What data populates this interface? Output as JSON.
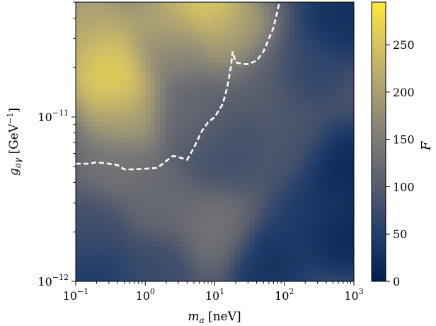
{
  "chart_data": {
    "type": "heatmap",
    "title": "",
    "x": {
      "label_base": "m",
      "label_sub": "a",
      "label_unit": " [neV]",
      "scale": "log",
      "range": [
        0.1,
        1000
      ],
      "ticks": [
        {
          "value": 0.1,
          "base": "10",
          "exp": "−1"
        },
        {
          "value": 1,
          "base": "10",
          "exp": "0"
        },
        {
          "value": 10,
          "base": "10",
          "exp": "1"
        },
        {
          "value": 100,
          "base": "10",
          "exp": "2"
        },
        {
          "value": 1000,
          "base": "10",
          "exp": "3"
        }
      ]
    },
    "y": {
      "label_base": "g",
      "label_sub": "aγ",
      "label_unit_pre": " [GeV",
      "label_unit_exp": "−1",
      "label_unit_post": "]",
      "scale": "log",
      "range": [
        1e-12,
        5e-11
      ],
      "ticks": [
        {
          "value": 1e-12,
          "base": "10",
          "exp": "−12"
        },
        {
          "value": 1e-11,
          "base": "10",
          "exp": "−11"
        }
      ]
    },
    "colorbar": {
      "label": "F",
      "range": [
        0,
        295
      ],
      "ticks": [
        {
          "value": 0,
          "label": "0"
        },
        {
          "value": 50,
          "label": "50"
        },
        {
          "value": 100,
          "label": "100"
        },
        {
          "value": 150,
          "label": "150"
        },
        {
          "value": 200,
          "label": "200"
        },
        {
          "value": 250,
          "label": "250"
        }
      ],
      "colormap": "cividis",
      "colormap_stops": [
        "#00204c",
        "#213d6b",
        "#555b6c",
        "#7b7a77",
        "#a59c74",
        "#d3c064",
        "#fee838"
      ]
    },
    "field_peaks": [
      {
        "name": "background",
        "value": 95
      },
      {
        "x": 0.35,
        "y": 1.7e-11,
        "value": 292
      },
      {
        "x": 0.25,
        "y": 2.5e-11,
        "value": 255
      },
      {
        "x": 7,
        "y": 4.8e-11,
        "value": 280
      },
      {
        "x": 2,
        "y": 3.5e-11,
        "value": 230
      },
      {
        "x": 20,
        "y": 3e-11,
        "value": 215
      },
      {
        "x": 0.15,
        "y": 4e-11,
        "value": 215
      },
      {
        "x": 2.5,
        "y": 2.5e-11,
        "value": 150
      },
      {
        "x": 50,
        "y": 1.8e-11,
        "value": 105
      },
      {
        "x": 12,
        "y": 6.5e-12,
        "value": 80
      },
      {
        "x": 0.4,
        "y": 5e-12,
        "value": 140
      },
      {
        "x": 1.6,
        "y": 3e-12,
        "value": 125
      },
      {
        "x": 10,
        "y": 2e-12,
        "value": 140
      },
      {
        "x": 0.2,
        "y": 2e-12,
        "value": 75
      },
      {
        "x": 150,
        "y": 7e-12,
        "value": 90
      },
      {
        "x": 600,
        "y": 5e-12,
        "value": 5
      },
      {
        "x": 700,
        "y": 2e-12,
        "value": 5
      },
      {
        "x": 300,
        "y": 2.5e-12,
        "value": 40
      },
      {
        "x": 60,
        "y": 1.3e-12,
        "value": 25
      },
      {
        "x": 0.2,
        "y": 1.1e-12,
        "value": 40
      },
      {
        "x": 1.5,
        "y": 1.2e-12,
        "value": 70
      },
      {
        "x": 700,
        "y": 4e-11,
        "value": 20
      },
      {
        "x": 200,
        "y": 2e-11,
        "value": 60
      },
      {
        "x": 0.5,
        "y": 1e-11,
        "value": 215
      },
      {
        "x": 5,
        "y": 1e-11,
        "value": 120
      }
    ],
    "contour": {
      "style": "white dashed",
      "points": [
        [
          0.1,
          5.2e-12
        ],
        [
          0.15,
          5.2e-12
        ],
        [
          0.2,
          5.3e-12
        ],
        [
          0.3,
          5.2e-12
        ],
        [
          0.4,
          5.1e-12
        ],
        [
          0.5,
          4.8e-12
        ],
        [
          0.7,
          4.8e-12
        ],
        [
          1.5,
          4.9e-12
        ],
        [
          2.0,
          5.4e-12
        ],
        [
          2.5,
          5.8e-12
        ],
        [
          3.0,
          5.7e-12
        ],
        [
          4.0,
          5.5e-12
        ],
        [
          5.0,
          6.5e-12
        ],
        [
          6.5,
          8.2e-12
        ],
        [
          8.0,
          9.3e-12
        ],
        [
          10,
          1e-11
        ],
        [
          13,
          1.2e-11
        ],
        [
          15,
          1.5e-11
        ],
        [
          17,
          2e-11
        ],
        [
          18,
          2.5e-11
        ],
        [
          20,
          2.15e-11
        ],
        [
          25,
          2.1e-11
        ],
        [
          30,
          2.1e-11
        ],
        [
          40,
          2.2e-11
        ],
        [
          50,
          2.5e-11
        ],
        [
          70,
          3.5e-11
        ],
        [
          85,
          5e-11
        ]
      ]
    }
  }
}
